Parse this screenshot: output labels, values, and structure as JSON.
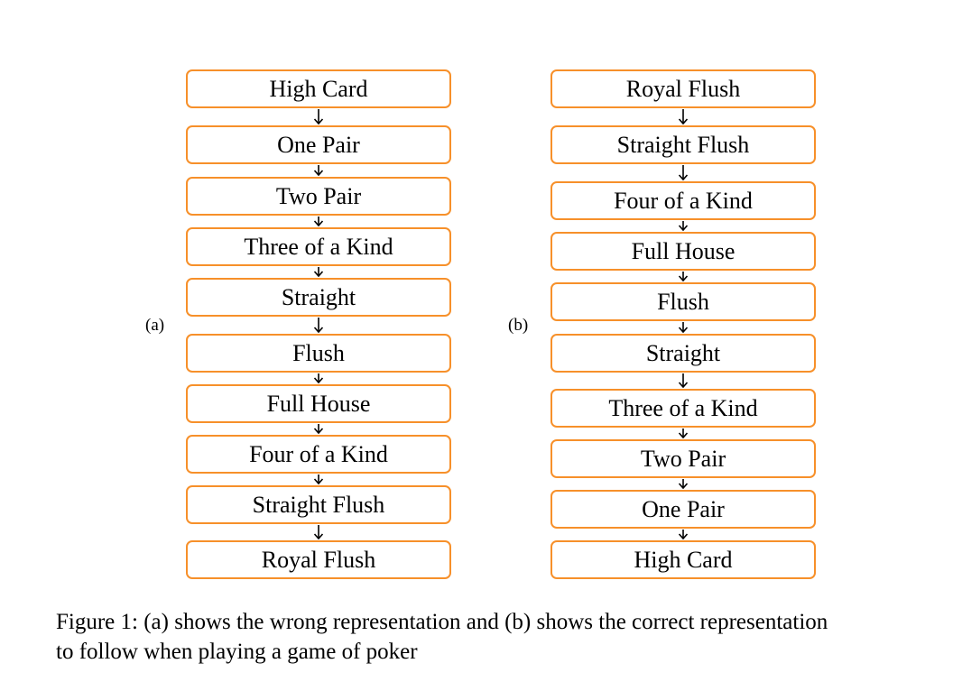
{
  "diagram_a": {
    "label": "(a)",
    "items": [
      "High Card",
      "One Pair",
      "Two Pair",
      "Three of a Kind",
      "Straight",
      "Flush",
      "Full House",
      "Four of a Kind",
      "Straight Flush",
      "Royal Flush"
    ]
  },
  "diagram_b": {
    "label": "(b)",
    "items": [
      "Royal Flush",
      "Straight Flush",
      "Four of a Kind",
      "Full House",
      "Flush",
      "Straight",
      "Three of a Kind",
      "Two Pair",
      "One Pair",
      "High Card"
    ]
  },
  "caption": {
    "line1": "Figure 1: (a) shows the wrong representation and (b) shows the correct representation",
    "line2": "to follow when playing a game of poker"
  },
  "colors": {
    "box_border": "#f7902a",
    "arrow": "#000000"
  }
}
